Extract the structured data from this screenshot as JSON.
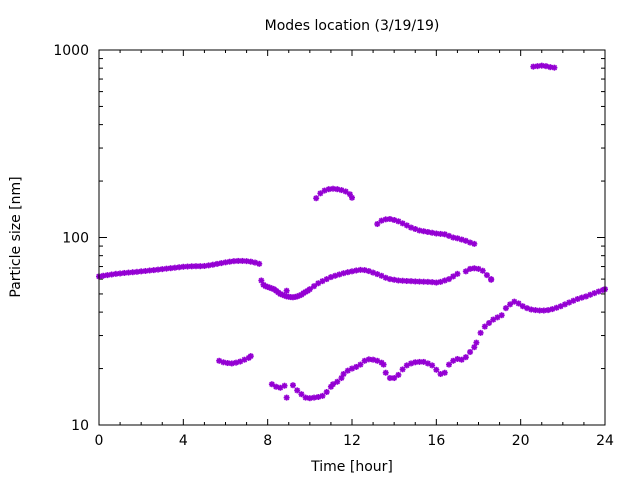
{
  "chart_data": {
    "type": "scatter",
    "title": "Modes location (3/19/19)",
    "xlabel": "Time [hour]",
    "ylabel": "Particle size [nm]",
    "xlim": [
      0,
      24
    ],
    "ylim": [
      10,
      1000
    ],
    "yscale": "log",
    "grid": false,
    "legend": "none",
    "marker_color": "#9400d3",
    "x_ticks": [
      0,
      4,
      8,
      12,
      16,
      20,
      24
    ],
    "x_tick_labels": [
      "0",
      "4",
      "8",
      "12",
      "16",
      "20",
      "24"
    ],
    "y_ticks": [
      10,
      100,
      1000
    ],
    "y_tick_labels": [
      "10",
      "100",
      "1000"
    ],
    "series": [
      {
        "values": [
          [
            0,
            62
          ],
          [
            0.2,
            62.5
          ],
          [
            0.4,
            63
          ],
          [
            0.6,
            63.5
          ],
          [
            0.8,
            64
          ],
          [
            1,
            64.3
          ],
          [
            1.2,
            64.7
          ],
          [
            1.4,
            65
          ],
          [
            1.6,
            65.3
          ],
          [
            1.8,
            65.6
          ],
          [
            2,
            66
          ],
          [
            2.2,
            66.3
          ],
          [
            2.4,
            66.7
          ],
          [
            2.6,
            67
          ],
          [
            2.8,
            67.4
          ],
          [
            3,
            67.8
          ],
          [
            3.2,
            68.2
          ],
          [
            3.4,
            68.6
          ],
          [
            3.6,
            69
          ],
          [
            3.8,
            69.4
          ],
          [
            4,
            69.8
          ],
          [
            4.2,
            70
          ],
          [
            4.4,
            70.2
          ],
          [
            4.6,
            70.3
          ],
          [
            4.8,
            70.3
          ],
          [
            5,
            70.5
          ],
          [
            5.2,
            71
          ],
          [
            5.4,
            71.6
          ],
          [
            5.6,
            72.3
          ],
          [
            5.8,
            73
          ],
          [
            6,
            73.7
          ],
          [
            6.2,
            74.3
          ],
          [
            6.4,
            74.8
          ],
          [
            6.6,
            75
          ],
          [
            6.8,
            75
          ],
          [
            7,
            74.8
          ],
          [
            7.2,
            74.3
          ],
          [
            7.4,
            73.5
          ],
          [
            7.6,
            72.4
          ]
        ]
      },
      {
        "values": [
          [
            7.7,
            59
          ],
          [
            7.8,
            56
          ],
          [
            7.9,
            55
          ],
          [
            8.0,
            54.5
          ],
          [
            8.1,
            54
          ],
          [
            8.2,
            53.5
          ],
          [
            8.3,
            53
          ],
          [
            8.4,
            52
          ],
          [
            8.5,
            51
          ],
          [
            8.6,
            50
          ],
          [
            8.7,
            49.5
          ],
          [
            8.8,
            49
          ],
          [
            8.9,
            48.5
          ],
          [
            9.0,
            48.3
          ],
          [
            9.1,
            48.1
          ],
          [
            9.2,
            48
          ],
          [
            9.3,
            48.2
          ],
          [
            9.4,
            48.5
          ],
          [
            9.5,
            49
          ],
          [
            9.6,
            49.5
          ],
          [
            9.7,
            50.5
          ],
          [
            9.8,
            51.3
          ],
          [
            9.9,
            52
          ],
          [
            10.0,
            53
          ],
          [
            10.2,
            55
          ],
          [
            10.4,
            57
          ],
          [
            10.6,
            58.5
          ],
          [
            10.8,
            60
          ],
          [
            11.0,
            61.5
          ],
          [
            11.2,
            62.5
          ],
          [
            11.4,
            63.5
          ],
          [
            11.6,
            64.5
          ],
          [
            11.8,
            65.3
          ],
          [
            12.0,
            66
          ],
          [
            12.2,
            66.7
          ],
          [
            12.4,
            67.2
          ],
          [
            12.6,
            67
          ],
          [
            12.8,
            66.2
          ],
          [
            13.0,
            65
          ],
          [
            13.2,
            63.8
          ],
          [
            13.4,
            62.5
          ],
          [
            13.6,
            61
          ],
          [
            13.8,
            60
          ],
          [
            14.0,
            59.5
          ],
          [
            14.2,
            59
          ],
          [
            14.4,
            58.8
          ],
          [
            14.6,
            58.6
          ],
          [
            14.8,
            58.5
          ],
          [
            15.0,
            58.3
          ],
          [
            15.2,
            58.2
          ],
          [
            15.4,
            58.1
          ],
          [
            15.6,
            58
          ],
          [
            15.8,
            57.8
          ],
          [
            16.0,
            57.5
          ],
          [
            16.2,
            58
          ],
          [
            16.4,
            59
          ],
          [
            16.6,
            60
          ],
          [
            16.8,
            62
          ],
          [
            17.0,
            64
          ]
        ]
      },
      {
        "values": [
          [
            17.4,
            66
          ],
          [
            17.6,
            68
          ],
          [
            17.8,
            68.5
          ],
          [
            18.0,
            68
          ],
          [
            18.2,
            66.5
          ],
          [
            18.4,
            63
          ],
          [
            18.6,
            59.5
          ],
          [
            8.9,
            52
          ],
          [
            18.6,
            60
          ]
        ]
      },
      {
        "values": [
          [
            10.3,
            162
          ],
          [
            10.5,
            172
          ],
          [
            10.7,
            178
          ],
          [
            10.9,
            181
          ],
          [
            11.1,
            182
          ],
          [
            11.3,
            181
          ],
          [
            11.5,
            179
          ],
          [
            11.7,
            176
          ],
          [
            11.9,
            170
          ],
          [
            12.0,
            163
          ]
        ]
      },
      {
        "values": [
          [
            13.2,
            118
          ],
          [
            13.4,
            123
          ],
          [
            13.6,
            125
          ],
          [
            13.8,
            125.5
          ],
          [
            14.0,
            124
          ],
          [
            14.2,
            122
          ],
          [
            14.4,
            119
          ],
          [
            14.6,
            116
          ],
          [
            14.8,
            113
          ],
          [
            15.0,
            111
          ],
          [
            15.2,
            109
          ],
          [
            15.4,
            108
          ],
          [
            15.6,
            107
          ],
          [
            15.8,
            106
          ],
          [
            16.0,
            105
          ],
          [
            16.2,
            104.5
          ],
          [
            16.4,
            104
          ],
          [
            16.6,
            102
          ],
          [
            16.8,
            100
          ],
          [
            17.0,
            99
          ],
          [
            17.2,
            97.5
          ],
          [
            17.4,
            96
          ],
          [
            17.6,
            94
          ],
          [
            17.8,
            92.5
          ]
        ]
      },
      {
        "values": [
          [
            5.7,
            22
          ],
          [
            5.9,
            21.6
          ],
          [
            6.1,
            21.4
          ],
          [
            6.3,
            21.3
          ],
          [
            6.5,
            21.5
          ],
          [
            6.7,
            21.8
          ],
          [
            6.9,
            22.3
          ],
          [
            7.1,
            22.8
          ],
          [
            7.2,
            23.3
          ]
        ]
      },
      {
        "values": [
          [
            8.2,
            16.5
          ],
          [
            8.4,
            16
          ],
          [
            8.6,
            15.8
          ],
          [
            8.8,
            16.2
          ],
          [
            8.9,
            14
          ],
          [
            9.2,
            16.3
          ],
          [
            9.4,
            15.3
          ],
          [
            9.6,
            14.6
          ],
          [
            9.8,
            14
          ],
          [
            10.0,
            13.9
          ],
          [
            10.2,
            14
          ],
          [
            10.4,
            14.1
          ],
          [
            10.6,
            14.3
          ],
          [
            10.8,
            15
          ],
          [
            11.0,
            16
          ],
          [
            11.1,
            16.5
          ],
          [
            11.3,
            17
          ],
          [
            11.5,
            17.8
          ],
          [
            11.6,
            18.7
          ],
          [
            11.8,
            19.5
          ],
          [
            12.0,
            20
          ],
          [
            12.2,
            20.4
          ],
          [
            12.4,
            21
          ],
          [
            12.6,
            22
          ],
          [
            12.8,
            22.4
          ],
          [
            13.0,
            22.3
          ],
          [
            13.2,
            22
          ],
          [
            13.4,
            21.5
          ],
          [
            13.5,
            21
          ],
          [
            13.6,
            19
          ],
          [
            13.8,
            17.8
          ],
          [
            14.0,
            17.8
          ],
          [
            14.2,
            18.5
          ],
          [
            14.4,
            19.8
          ],
          [
            14.6,
            20.8
          ],
          [
            14.8,
            21.3
          ],
          [
            15.0,
            21.6
          ],
          [
            15.2,
            21.7
          ],
          [
            15.4,
            21.7
          ],
          [
            15.6,
            21.3
          ],
          [
            15.8,
            20.8
          ],
          [
            16.0,
            19.7
          ],
          [
            16.2,
            18.7
          ],
          [
            16.4,
            19
          ],
          [
            16.6,
            21
          ],
          [
            16.8,
            22
          ],
          [
            17.0,
            22.5
          ],
          [
            17.2,
            22.3
          ],
          [
            17.4,
            23
          ],
          [
            17.6,
            24.5
          ],
          [
            17.8,
            26
          ],
          [
            17.9,
            27.5
          ],
          [
            18.1,
            31
          ],
          [
            18.3,
            33.5
          ],
          [
            18.5,
            35
          ],
          [
            18.7,
            36.5
          ],
          [
            18.9,
            37.5
          ],
          [
            19.1,
            38.5
          ],
          [
            19.3,
            42
          ],
          [
            19.5,
            44
          ],
          [
            19.7,
            45.5
          ],
          [
            19.9,
            44.5
          ],
          [
            20.1,
            43
          ],
          [
            20.3,
            42
          ],
          [
            20.5,
            41.3
          ],
          [
            20.7,
            41
          ],
          [
            20.9,
            40.8
          ],
          [
            21.1,
            40.8
          ],
          [
            21.3,
            41
          ],
          [
            21.5,
            41.5
          ],
          [
            21.7,
            42.2
          ],
          [
            21.9,
            43
          ],
          [
            22.1,
            44
          ],
          [
            22.3,
            45
          ],
          [
            22.5,
            46
          ],
          [
            22.7,
            47
          ],
          [
            22.9,
            47.8
          ],
          [
            23.1,
            48.5
          ],
          [
            23.3,
            49.5
          ],
          [
            23.5,
            50.5
          ],
          [
            23.7,
            51.5
          ],
          [
            23.9,
            52.5
          ],
          [
            24.0,
            53
          ]
        ]
      },
      {
        "values": [
          [
            20.6,
            815
          ],
          [
            20.8,
            820
          ],
          [
            21.0,
            825
          ],
          [
            21.2,
            820
          ],
          [
            21.4,
            810
          ],
          [
            21.6,
            805
          ]
        ]
      }
    ]
  }
}
